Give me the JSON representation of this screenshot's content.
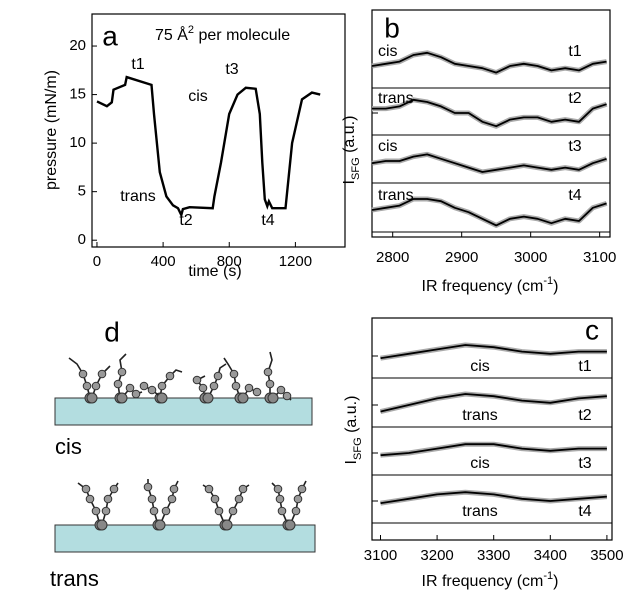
{
  "chart_data": [
    {
      "label": "a",
      "type": "line",
      "color": "#000000",
      "xlabel": "time (s)",
      "ylabel": "pressure (mN/m)",
      "annotation_parts": [
        "75 Å",
        "2",
        " per molecule"
      ],
      "annotations": [
        "t1",
        "cis",
        "t3",
        "trans",
        "t2",
        "t4"
      ],
      "x": [
        0,
        60,
        90,
        100,
        170,
        180,
        330,
        345,
        380,
        420,
        460,
        490,
        510,
        520,
        560,
        700,
        710,
        750,
        800,
        850,
        900,
        960,
        985,
        1000,
        1015,
        1030,
        1040,
        1060,
        1140,
        1180,
        1240,
        1300,
        1350
      ],
      "values": [
        14.3,
        13.8,
        14.2,
        15.5,
        16.0,
        16.8,
        16.0,
        13.0,
        7.0,
        4.5,
        3.6,
        3.3,
        2.6,
        3.2,
        3.4,
        3.3,
        4.5,
        8.0,
        13.0,
        15.0,
        15.7,
        15.6,
        13.0,
        8.0,
        4.2,
        3.5,
        4.0,
        3.3,
        3.3,
        10.0,
        14.5,
        15.2,
        15.0
      ],
      "xlim": [
        -30,
        1500
      ],
      "ylim": [
        -0.7,
        23.3
      ],
      "xticks": [
        0,
        400,
        800,
        1200
      ],
      "yticks": [
        0,
        5,
        10,
        15,
        20
      ]
    },
    {
      "label": "b",
      "type": "line",
      "stacked": true,
      "xlabel_parts": [
        "IR frequency (cm",
        "-1",
        ")"
      ],
      "ylabel_parts": [
        "I",
        "SFG",
        " (a.u.)"
      ],
      "x": [
        2770,
        2790,
        2810,
        2830,
        2850,
        2870,
        2890,
        2910,
        2930,
        2950,
        2970,
        2990,
        3010,
        3030,
        3050,
        3070,
        3090,
        3110
      ],
      "series": [
        {
          "name": "cis",
          "time_label": "t1",
          "color": "#000000",
          "values": [
            0.5,
            0.55,
            0.6,
            0.75,
            0.8,
            0.7,
            0.55,
            0.5,
            0.45,
            0.35,
            0.5,
            0.55,
            0.5,
            0.4,
            0.45,
            0.4,
            0.55,
            0.6
          ]
        },
        {
          "name": "trans",
          "time_label": "t2",
          "color": "#000000",
          "values": [
            0.6,
            0.6,
            0.65,
            0.8,
            0.75,
            0.65,
            0.5,
            0.5,
            0.3,
            0.2,
            0.35,
            0.4,
            0.4,
            0.3,
            0.35,
            0.3,
            0.6,
            0.7
          ]
        },
        {
          "name": "cis",
          "time_label": "t3",
          "color": "#000000",
          "values": [
            0.45,
            0.5,
            0.5,
            0.6,
            0.65,
            0.55,
            0.45,
            0.35,
            0.25,
            0.3,
            0.35,
            0.4,
            0.35,
            0.3,
            0.35,
            0.3,
            0.45,
            0.55
          ]
        },
        {
          "name": "trans",
          "time_label": "t4",
          "color": "#000000",
          "values": [
            0.5,
            0.55,
            0.6,
            0.75,
            0.75,
            0.7,
            0.55,
            0.45,
            0.3,
            0.15,
            0.3,
            0.35,
            0.3,
            0.2,
            0.3,
            0.25,
            0.55,
            0.65
          ]
        }
      ],
      "xlim": [
        2770,
        3115
      ],
      "strip_ylim": [
        0,
        1
      ],
      "xticks": [
        2800,
        2900,
        3000,
        3100
      ]
    },
    {
      "label": "c",
      "type": "line",
      "stacked": true,
      "xlabel_parts": [
        "IR frequency (cm",
        "-1",
        ")"
      ],
      "ylabel_parts": [
        "I",
        "SFG",
        " (a.u.)"
      ],
      "x": [
        3100,
        3150,
        3200,
        3250,
        3300,
        3350,
        3400,
        3450,
        3500
      ],
      "series": [
        {
          "name": "cis",
          "time_label": "t1",
          "color": "#000000",
          "values": [
            0.45,
            0.55,
            0.65,
            0.75,
            0.7,
            0.6,
            0.55,
            0.6,
            0.6
          ]
        },
        {
          "name": "trans",
          "time_label": "t2",
          "color": "#000000",
          "values": [
            0.35,
            0.5,
            0.65,
            0.75,
            0.7,
            0.6,
            0.55,
            0.65,
            0.7
          ]
        },
        {
          "name": "cis",
          "time_label": "t3",
          "color": "#000000",
          "values": [
            0.45,
            0.5,
            0.6,
            0.7,
            0.7,
            0.6,
            0.55,
            0.6,
            0.6
          ]
        },
        {
          "name": "trans",
          "time_label": "t4",
          "color": "#000000",
          "values": [
            0.45,
            0.55,
            0.65,
            0.7,
            0.65,
            0.55,
            0.5,
            0.55,
            0.6
          ]
        }
      ],
      "xlim": [
        3085,
        3509
      ],
      "strip_ylim": [
        0,
        1
      ],
      "xticks": [
        3100,
        3200,
        3300,
        3400,
        3500
      ]
    }
  ],
  "diagram": {
    "label": "d",
    "captions": [
      "cis",
      "trans"
    ]
  }
}
